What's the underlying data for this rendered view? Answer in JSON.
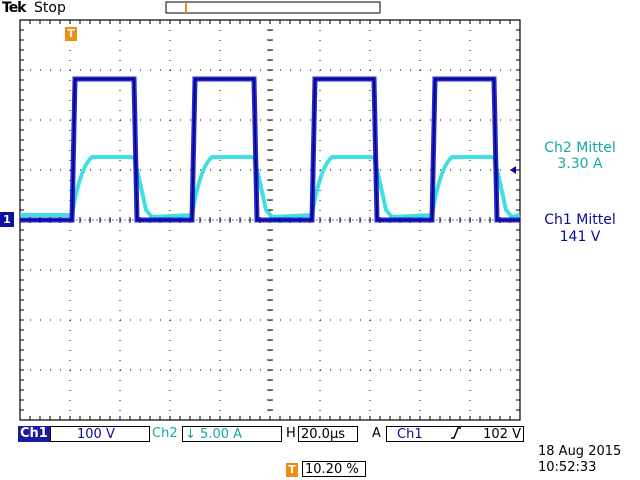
{
  "header": {
    "brand": "Tek",
    "acq_status": "Stop"
  },
  "trigger_marker_label": "T",
  "ground_marker_label": "1",
  "measurements": {
    "ch2_label": "Ch2 Mittel",
    "ch2_value": "3.30 A",
    "ch1_label": "Ch1 Mittel",
    "ch1_value": "141 V"
  },
  "status_bar": {
    "ch1_label": "Ch1",
    "ch1_scale": "100 V",
    "ch2_label": "Ch2",
    "ch2_coupling_icon": "bandwidth-limit-arrow",
    "ch2_scale": "5.00 A",
    "h_label": "H",
    "h_scale": "20.0µs",
    "trigger_mode": "A",
    "trigger_source": "Ch1",
    "trigger_slope_icon": "rising-edge-icon",
    "trigger_level": "102 V",
    "trigger_position": "10.20 %"
  },
  "datetime": {
    "date": "18 Aug 2015",
    "time": "10:52:33"
  },
  "colors": {
    "ch1": "#1010c8",
    "ch2": "#20d8e0",
    "trigger": "#f08c10",
    "grid": "#000000"
  },
  "chart_data": {
    "type": "line",
    "xlabel": "",
    "ylabel": "",
    "x_divisions": 10,
    "y_divisions": 8,
    "series": [
      {
        "name": "Ch1",
        "unit_per_div": 100,
        "description_levels_div": [
          0,
          2.85
        ],
        "periods": 4,
        "duty_fraction": 0.5
      },
      {
        "name": "Ch2",
        "unit_per_div": 5,
        "description_levels_div": [
          0.1,
          1.25
        ],
        "periods": 4,
        "duty_fraction": 0.5
      }
    ]
  }
}
